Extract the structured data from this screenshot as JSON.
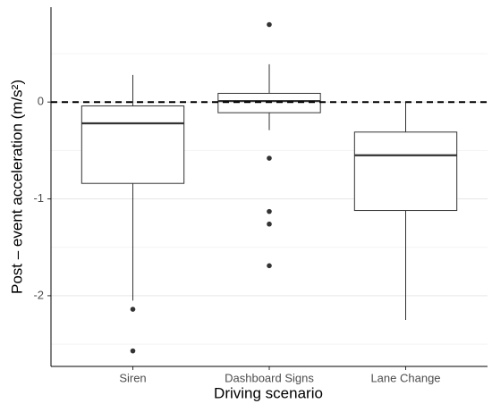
{
  "chart_data": {
    "type": "box",
    "x_label": "Driving scenario",
    "y_label": "Post – event acceleration (m/s²)",
    "categories": [
      "Siren",
      "Dashboard Signs",
      "Lane Change"
    ],
    "boxes": [
      {
        "whisker_low": -2.05,
        "q1": -0.84,
        "median": -0.22,
        "q3": -0.04,
        "whisker_high": 0.28,
        "outliers": [
          -2.14,
          -2.57
        ]
      },
      {
        "whisker_low": -0.29,
        "q1": -0.11,
        "median": 0.01,
        "q3": 0.09,
        "whisker_high": 0.39,
        "outliers": [
          0.8,
          -0.58,
          -1.13,
          -1.26,
          -1.69
        ]
      },
      {
        "whisker_low": -2.25,
        "q1": -1.12,
        "median": -0.55,
        "q3": -0.31,
        "whisker_high": 0,
        "outliers": []
      }
    ],
    "reference_line": 0,
    "ylim": [
      -2.73,
      0.98
    ],
    "yticks": [
      -2,
      -1,
      0
    ],
    "minor_yticks": [
      -2.5,
      -1.5,
      -0.5,
      0.5
    ],
    "grid": true
  }
}
